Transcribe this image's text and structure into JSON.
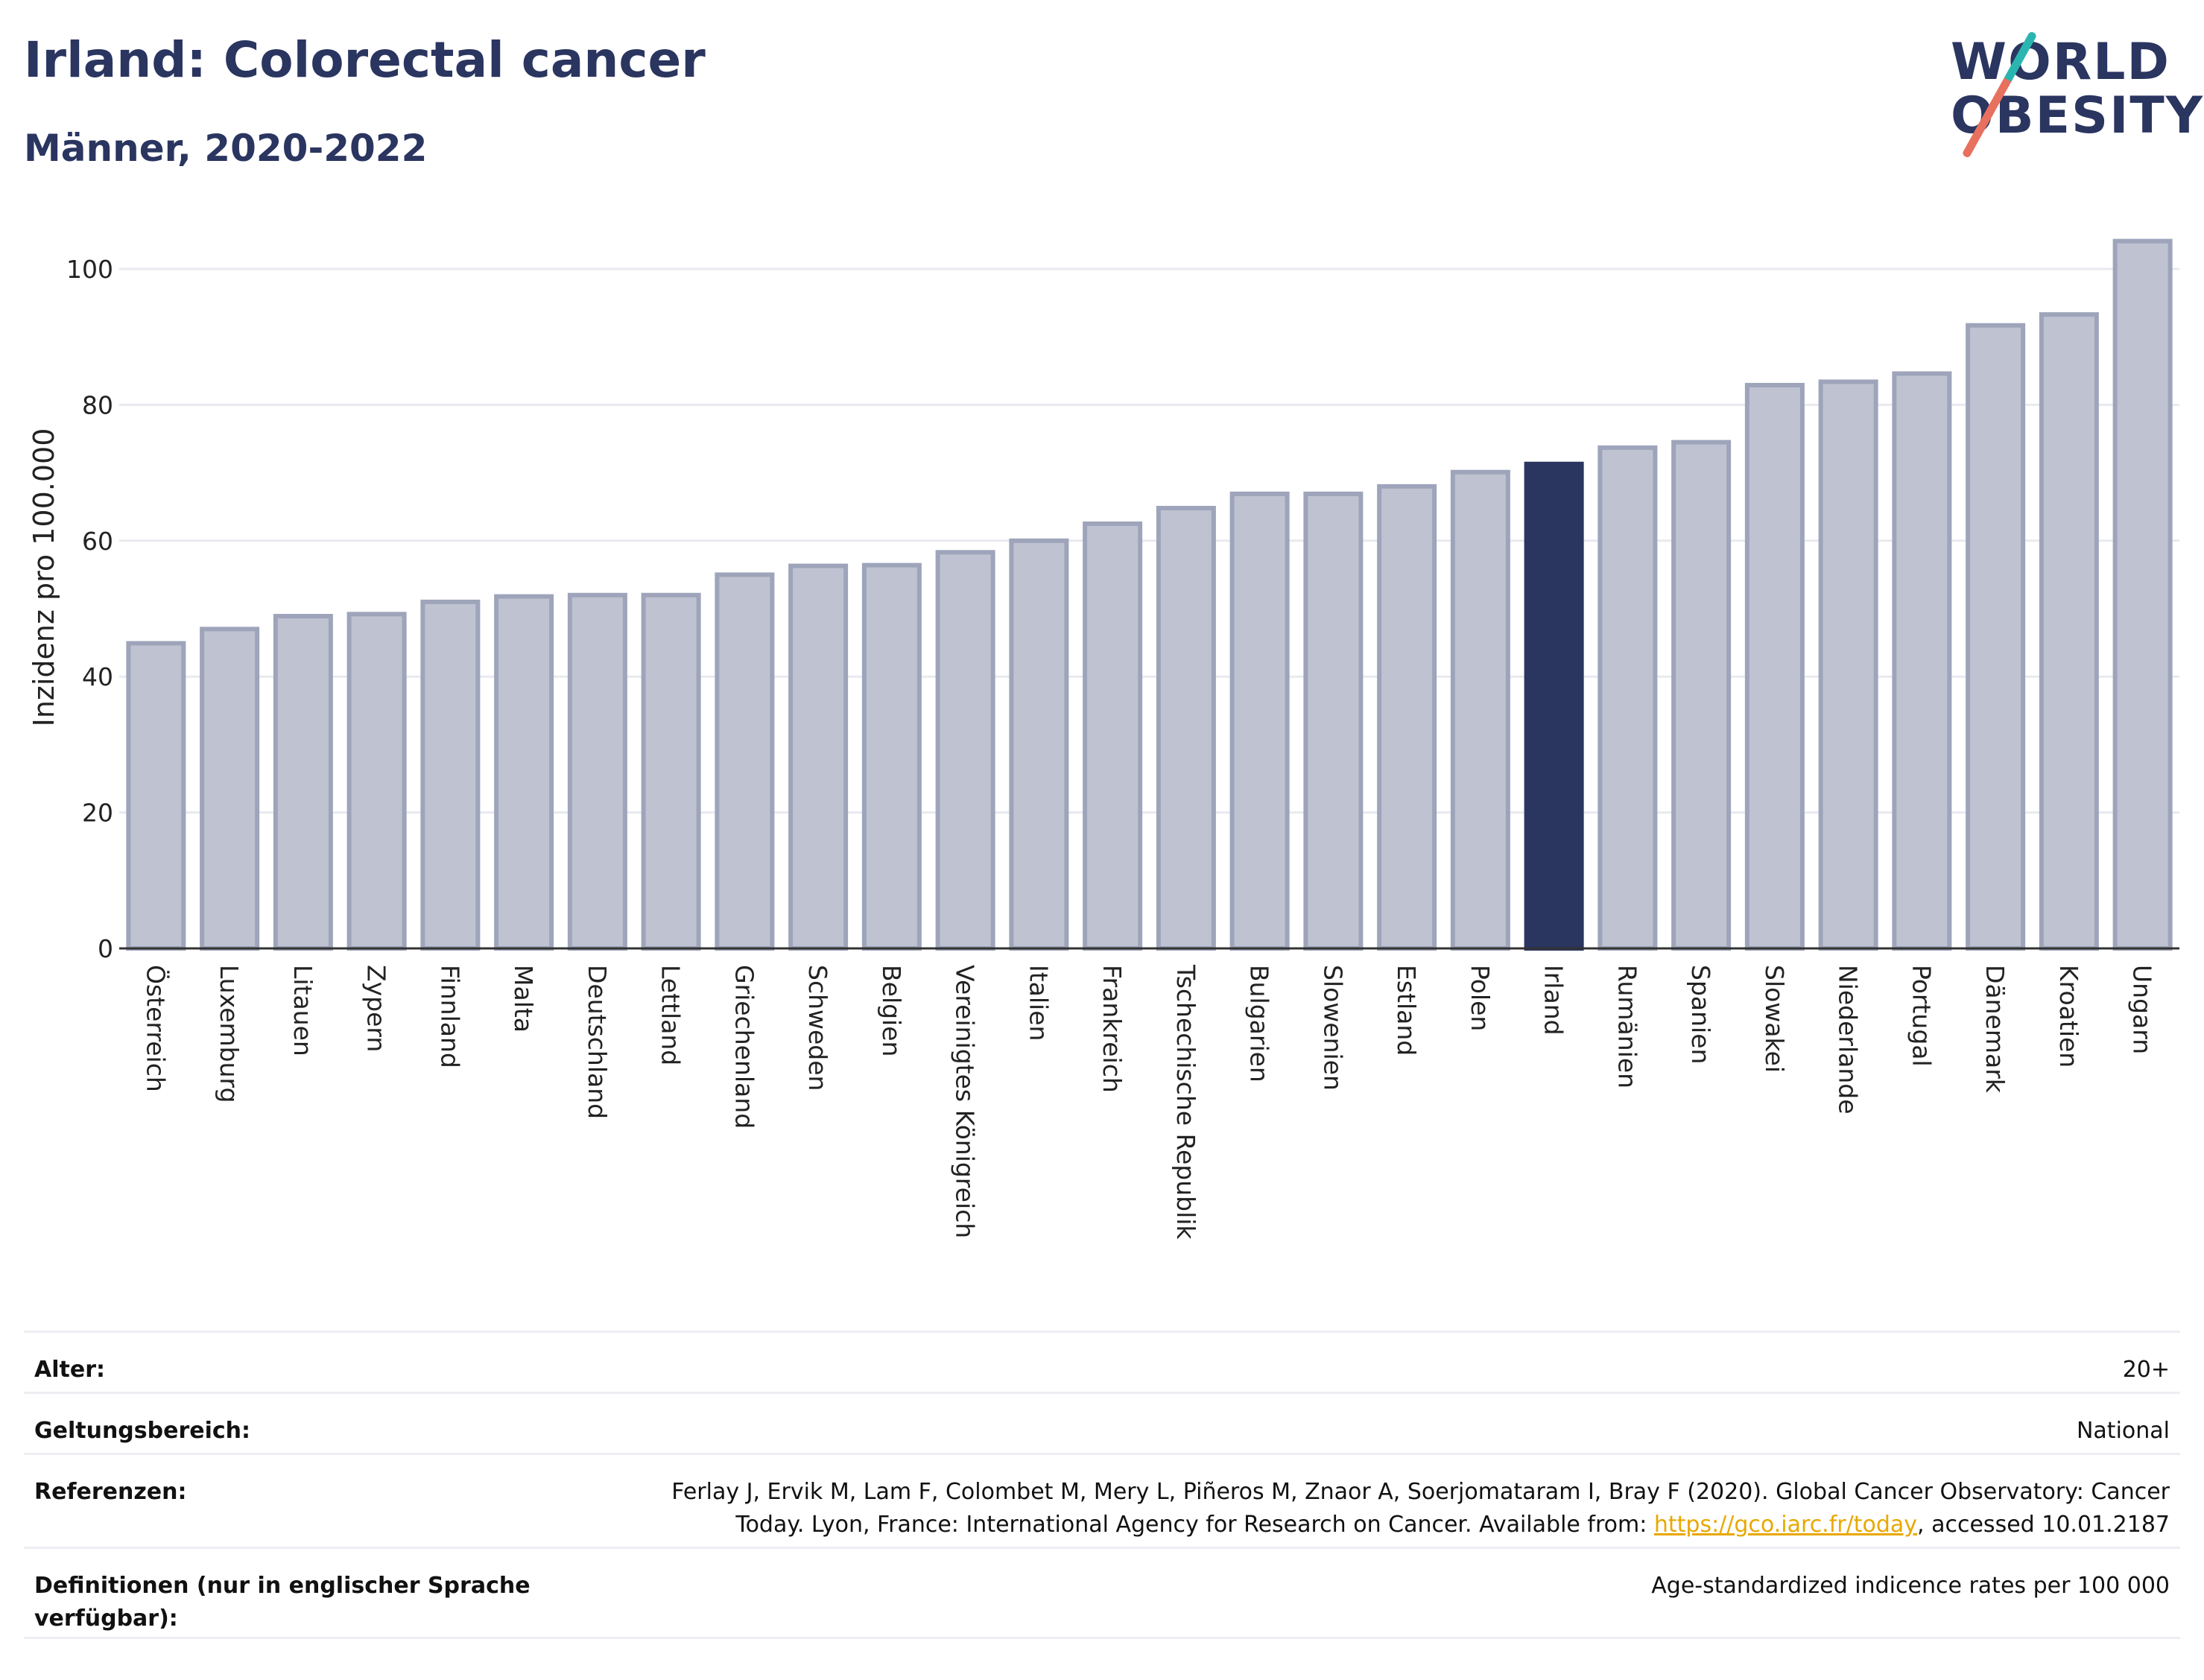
{
  "header": {
    "title": "Irland: Colorectal cancer",
    "subtitle": "Männer, 2020-2022"
  },
  "logo": {
    "line1": "WORLD",
    "line2": "OBESITY",
    "slash_colors": [
      "#2ab5b0",
      "#e8705f"
    ]
  },
  "colors": {
    "bar_default": "#bfc3d1",
    "bar_default_stroke": "#9ea4ba",
    "bar_highlight": "#2a3560",
    "title": "#2a3560",
    "link": "#e8a800"
  },
  "chart_data": {
    "type": "bar",
    "title": "Irland: Colorectal cancer",
    "subtitle": "Männer, 2020-2022",
    "xlabel": "",
    "ylabel": "Inzidenz pro 100.000",
    "ylim": [
      0,
      108
    ],
    "yticks": [
      0,
      20,
      40,
      60,
      80,
      100
    ],
    "grid": true,
    "highlight": "Irland",
    "categories": [
      "Österreich",
      "Luxemburg",
      "Litauen",
      "Zypern",
      "Finnland",
      "Malta",
      "Deutschland",
      "Lettland",
      "Griechenland",
      "Schweden",
      "Belgien",
      "Vereinigtes Königreich",
      "Italien",
      "Frankreich",
      "Tschechische Republik",
      "Bulgarien",
      "Slowenien",
      "Estland",
      "Polen",
      "Irland",
      "Rumänien",
      "Spanien",
      "Slowakei",
      "Niederlande",
      "Portugal",
      "Dänemark",
      "Kroatien",
      "Ungarn"
    ],
    "values": [
      44.9,
      47.0,
      48.9,
      49.2,
      51.0,
      51.8,
      52.0,
      52.0,
      55.0,
      56.3,
      56.4,
      58.3,
      60.0,
      62.5,
      64.8,
      66.9,
      66.9,
      68.0,
      70.1,
      71.3,
      73.7,
      74.5,
      82.9,
      83.4,
      84.6,
      91.7,
      93.3,
      104.1
    ]
  },
  "info": {
    "rows": [
      {
        "label": "Alter:",
        "value": "20+"
      },
      {
        "label": "Geltungsbereich:",
        "value": "National"
      }
    ],
    "references": {
      "label": "Referenzen:",
      "text_before": "Ferlay J, Ervik M, Lam F, Colombet M, Mery L, Piñeros M, Znaor A, Soerjomataram I, Bray F (2020). Global Cancer Observatory: Cancer Today. Lyon, France: International Agency for Research on Cancer. Available from: ",
      "link": "https://gco.iarc.fr/today",
      "text_after": ", accessed 10.01.2187"
    },
    "definitions": {
      "label": "Definitionen (nur in englischer Sprache verfügbar):",
      "value": "Age-standardized indicence rates per 100 000"
    }
  }
}
